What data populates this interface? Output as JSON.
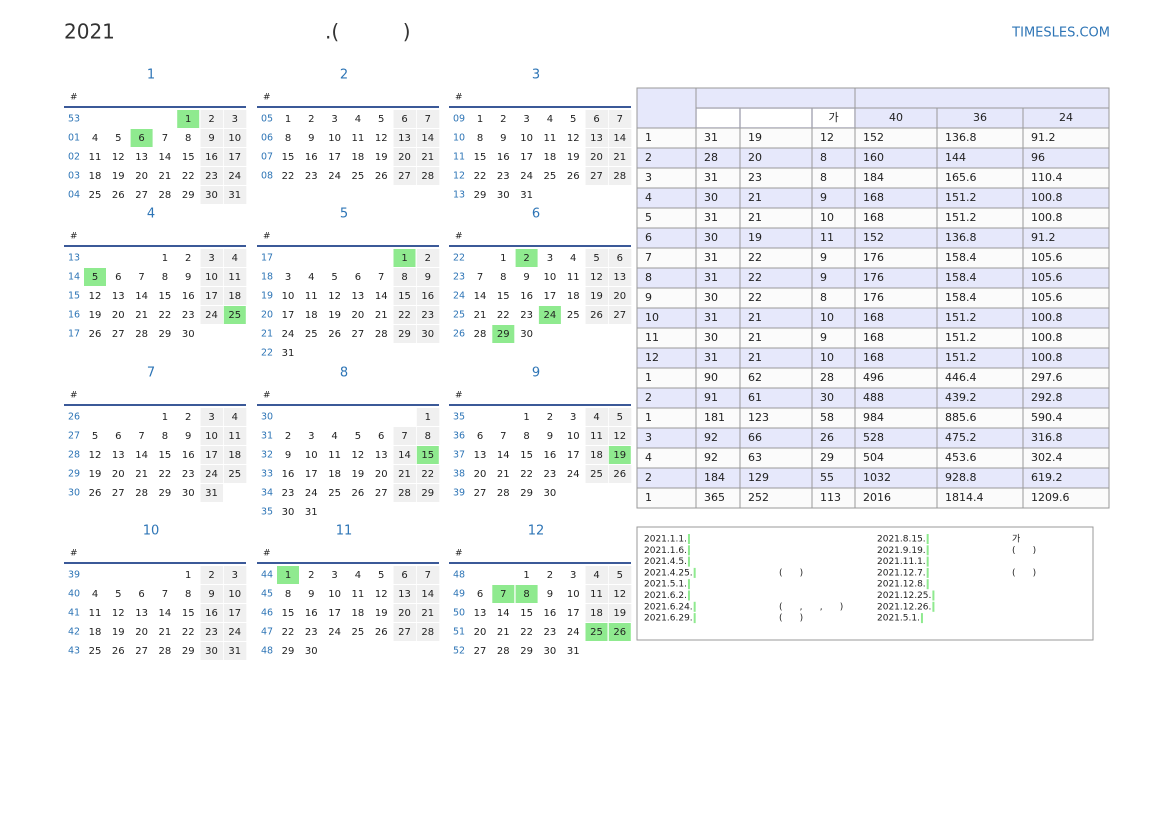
{
  "header": {
    "year": "2021",
    "title": ".(          )",
    "site": "TIMESLES.COM"
  },
  "calendar": {
    "week_header": "#",
    "months": [
      {
        "name": "1",
        "holidays": [
          1,
          6
        ],
        "weeks": [
          {
            "no": "53",
            "days": [
              null,
              null,
              null,
              null,
              1,
              2,
              3
            ]
          },
          {
            "no": "01",
            "days": [
              4,
              5,
              6,
              7,
              8,
              9,
              10
            ]
          },
          {
            "no": "02",
            "days": [
              11,
              12,
              13,
              14,
              15,
              16,
              17
            ]
          },
          {
            "no": "03",
            "days": [
              18,
              19,
              20,
              21,
              22,
              23,
              24
            ]
          },
          {
            "no": "04",
            "days": [
              25,
              26,
              27,
              28,
              29,
              30,
              31
            ]
          }
        ]
      },
      {
        "name": "2",
        "holidays": [],
        "weeks": [
          {
            "no": "05",
            "days": [
              1,
              2,
              3,
              4,
              5,
              6,
              7
            ]
          },
          {
            "no": "06",
            "days": [
              8,
              9,
              10,
              11,
              12,
              13,
              14
            ]
          },
          {
            "no": "07",
            "days": [
              15,
              16,
              17,
              18,
              19,
              20,
              21
            ]
          },
          {
            "no": "08",
            "days": [
              22,
              23,
              24,
              25,
              26,
              27,
              28
            ]
          }
        ]
      },
      {
        "name": "3",
        "holidays": [],
        "weeks": [
          {
            "no": "09",
            "days": [
              1,
              2,
              3,
              4,
              5,
              6,
              7
            ]
          },
          {
            "no": "10",
            "days": [
              8,
              9,
              10,
              11,
              12,
              13,
              14
            ]
          },
          {
            "no": "11",
            "days": [
              15,
              16,
              17,
              18,
              19,
              20,
              21
            ]
          },
          {
            "no": "12",
            "days": [
              22,
              23,
              24,
              25,
              26,
              27,
              28
            ]
          },
          {
            "no": "13",
            "days": [
              29,
              30,
              31,
              null,
              null,
              null,
              null
            ]
          }
        ]
      },
      {
        "name": "4",
        "holidays": [
          5,
          25
        ],
        "weeks": [
          {
            "no": "13",
            "days": [
              null,
              null,
              null,
              1,
              2,
              3,
              4
            ]
          },
          {
            "no": "14",
            "days": [
              5,
              6,
              7,
              8,
              9,
              10,
              11
            ]
          },
          {
            "no": "15",
            "days": [
              12,
              13,
              14,
              15,
              16,
              17,
              18
            ]
          },
          {
            "no": "16",
            "days": [
              19,
              20,
              21,
              22,
              23,
              24,
              25
            ]
          },
          {
            "no": "17",
            "days": [
              26,
              27,
              28,
              29,
              30,
              null,
              null
            ]
          }
        ]
      },
      {
        "name": "5",
        "holidays": [
          1
        ],
        "weeks": [
          {
            "no": "17",
            "days": [
              null,
              null,
              null,
              null,
              null,
              1,
              2
            ]
          },
          {
            "no": "18",
            "days": [
              3,
              4,
              5,
              6,
              7,
              8,
              9
            ]
          },
          {
            "no": "19",
            "days": [
              10,
              11,
              12,
              13,
              14,
              15,
              16
            ]
          },
          {
            "no": "20",
            "days": [
              17,
              18,
              19,
              20,
              21,
              22,
              23
            ]
          },
          {
            "no": "21",
            "days": [
              24,
              25,
              26,
              27,
              28,
              29,
              30
            ]
          },
          {
            "no": "22",
            "days": [
              31,
              null,
              null,
              null,
              null,
              null,
              null
            ]
          }
        ]
      },
      {
        "name": "6",
        "holidays": [
          2,
          24,
          29
        ],
        "weeks": [
          {
            "no": "22",
            "days": [
              null,
              1,
              2,
              3,
              4,
              5,
              6
            ]
          },
          {
            "no": "23",
            "days": [
              7,
              8,
              9,
              10,
              11,
              12,
              13
            ]
          },
          {
            "no": "24",
            "days": [
              14,
              15,
              16,
              17,
              18,
              19,
              20
            ]
          },
          {
            "no": "25",
            "days": [
              21,
              22,
              23,
              24,
              25,
              26,
              27
            ]
          },
          {
            "no": "26",
            "days": [
              28,
              29,
              30,
              null,
              null,
              null,
              null
            ]
          }
        ]
      },
      {
        "name": "7",
        "holidays": [],
        "weeks": [
          {
            "no": "26",
            "days": [
              null,
              null,
              null,
              1,
              2,
              3,
              4
            ]
          },
          {
            "no": "27",
            "days": [
              5,
              6,
              7,
              8,
              9,
              10,
              11
            ]
          },
          {
            "no": "28",
            "days": [
              12,
              13,
              14,
              15,
              16,
              17,
              18
            ]
          },
          {
            "no": "29",
            "days": [
              19,
              20,
              21,
              22,
              23,
              24,
              25
            ]
          },
          {
            "no": "30",
            "days": [
              26,
              27,
              28,
              29,
              30,
              31,
              null
            ]
          }
        ]
      },
      {
        "name": "8",
        "holidays": [
          15
        ],
        "weeks": [
          {
            "no": "30",
            "days": [
              null,
              null,
              null,
              null,
              null,
              null,
              1
            ]
          },
          {
            "no": "31",
            "days": [
              2,
              3,
              4,
              5,
              6,
              7,
              8
            ]
          },
          {
            "no": "32",
            "days": [
              9,
              10,
              11,
              12,
              13,
              14,
              15
            ]
          },
          {
            "no": "33",
            "days": [
              16,
              17,
              18,
              19,
              20,
              21,
              22
            ]
          },
          {
            "no": "34",
            "days": [
              23,
              24,
              25,
              26,
              27,
              28,
              29
            ]
          },
          {
            "no": "35",
            "days": [
              30,
              31,
              null,
              null,
              null,
              null,
              null
            ]
          }
        ]
      },
      {
        "name": "9",
        "holidays": [
          19
        ],
        "weeks": [
          {
            "no": "35",
            "days": [
              null,
              null,
              1,
              2,
              3,
              4,
              5
            ]
          },
          {
            "no": "36",
            "days": [
              6,
              7,
              8,
              9,
              10,
              11,
              12
            ]
          },
          {
            "no": "37",
            "days": [
              13,
              14,
              15,
              16,
              17,
              18,
              19
            ]
          },
          {
            "no": "38",
            "days": [
              20,
              21,
              22,
              23,
              24,
              25,
              26
            ]
          },
          {
            "no": "39",
            "days": [
              27,
              28,
              29,
              30,
              null,
              null,
              null
            ]
          }
        ]
      },
      {
        "name": "10",
        "holidays": [],
        "weeks": [
          {
            "no": "39",
            "days": [
              null,
              null,
              null,
              null,
              1,
              2,
              3
            ]
          },
          {
            "no": "40",
            "days": [
              4,
              5,
              6,
              7,
              8,
              9,
              10
            ]
          },
          {
            "no": "41",
            "days": [
              11,
              12,
              13,
              14,
              15,
              16,
              17
            ]
          },
          {
            "no": "42",
            "days": [
              18,
              19,
              20,
              21,
              22,
              23,
              24
            ]
          },
          {
            "no": "43",
            "days": [
              25,
              26,
              27,
              28,
              29,
              30,
              31
            ]
          }
        ]
      },
      {
        "name": "11",
        "holidays": [
          1
        ],
        "weeks": [
          {
            "no": "44",
            "days": [
              1,
              2,
              3,
              4,
              5,
              6,
              7
            ]
          },
          {
            "no": "45",
            "days": [
              8,
              9,
              10,
              11,
              12,
              13,
              14
            ]
          },
          {
            "no": "46",
            "days": [
              15,
              16,
              17,
              18,
              19,
              20,
              21
            ]
          },
          {
            "no": "47",
            "days": [
              22,
              23,
              24,
              25,
              26,
              27,
              28
            ]
          },
          {
            "no": "48",
            "days": [
              29,
              30,
              null,
              null,
              null,
              null,
              null
            ]
          }
        ]
      },
      {
        "name": "12",
        "holidays": [
          7,
          8,
          25,
          26
        ],
        "weeks": [
          {
            "no": "48",
            "days": [
              null,
              null,
              1,
              2,
              3,
              4,
              5
            ]
          },
          {
            "no": "49",
            "days": [
              6,
              7,
              8,
              9,
              10,
              11,
              12
            ]
          },
          {
            "no": "50",
            "days": [
              13,
              14,
              15,
              16,
              17,
              18,
              19
            ]
          },
          {
            "no": "51",
            "days": [
              20,
              21,
              22,
              23,
              24,
              25,
              26
            ]
          },
          {
            "no": "52",
            "days": [
              27,
              28,
              29,
              30,
              31,
              null,
              null
            ]
          }
        ]
      }
    ]
  },
  "table": {
    "header_labels": [
      "가",
      "40",
      "36",
      "24"
    ],
    "rows": [
      [
        1,
        31,
        19,
        12,
        152,
        136.8,
        91.2
      ],
      [
        2,
        28,
        20,
        8,
        160,
        144,
        96
      ],
      [
        3,
        31,
        23,
        8,
        184,
        165.6,
        110.4
      ],
      [
        4,
        30,
        21,
        9,
        168,
        151.2,
        100.8
      ],
      [
        5,
        31,
        21,
        10,
        168,
        151.2,
        100.8
      ],
      [
        6,
        30,
        19,
        11,
        152,
        136.8,
        91.2
      ],
      [
        7,
        31,
        22,
        9,
        176,
        158.4,
        105.6
      ],
      [
        8,
        31,
        22,
        9,
        176,
        158.4,
        105.6
      ],
      [
        9,
        30,
        22,
        8,
        176,
        158.4,
        105.6
      ],
      [
        10,
        31,
        21,
        10,
        168,
        151.2,
        100.8
      ],
      [
        11,
        30,
        21,
        9,
        168,
        151.2,
        100.8
      ],
      [
        12,
        31,
        21,
        10,
        168,
        151.2,
        100.8
      ],
      [
        1,
        90,
        62,
        28,
        496,
        446.4,
        297.6
      ],
      [
        2,
        91,
        61,
        30,
        488,
        439.2,
        292.8
      ],
      [
        1,
        181,
        123,
        58,
        984,
        885.6,
        590.4
      ],
      [
        3,
        92,
        66,
        26,
        528,
        475.2,
        316.8
      ],
      [
        4,
        92,
        63,
        29,
        504,
        453.6,
        302.4
      ],
      [
        2,
        184,
        129,
        55,
        1032,
        928.8,
        619.2
      ],
      [
        1,
        365,
        252,
        113,
        2016,
        1814.4,
        1209.6
      ]
    ]
  },
  "holidays": {
    "left": [
      {
        "date": "2021.1.1."
      },
      {
        "date": "2021.1.6."
      },
      {
        "date": "2021.4.5."
      },
      {
        "date": "2021.4.25.",
        "note": "(      )"
      },
      {
        "date": "2021.5.1."
      },
      {
        "date": "2021.6.2."
      },
      {
        "date": "2021.6.24.",
        "note": "(      ,      ,      )"
      },
      {
        "date": "2021.6.29.",
        "note": "(      )"
      }
    ],
    "right": [
      {
        "date": "2021.8.15.",
        "note": "가"
      },
      {
        "date": "2021.9.19.",
        "note": "(      )"
      },
      {
        "date": "2021.11.1."
      },
      {
        "date": "2021.12.7.",
        "note": "(      )"
      },
      {
        "date": "2021.12.8."
      },
      {
        "date": "2021.12.25."
      },
      {
        "date": "2021.12.26."
      },
      {
        "date": "2021.5.1."
      }
    ]
  }
}
